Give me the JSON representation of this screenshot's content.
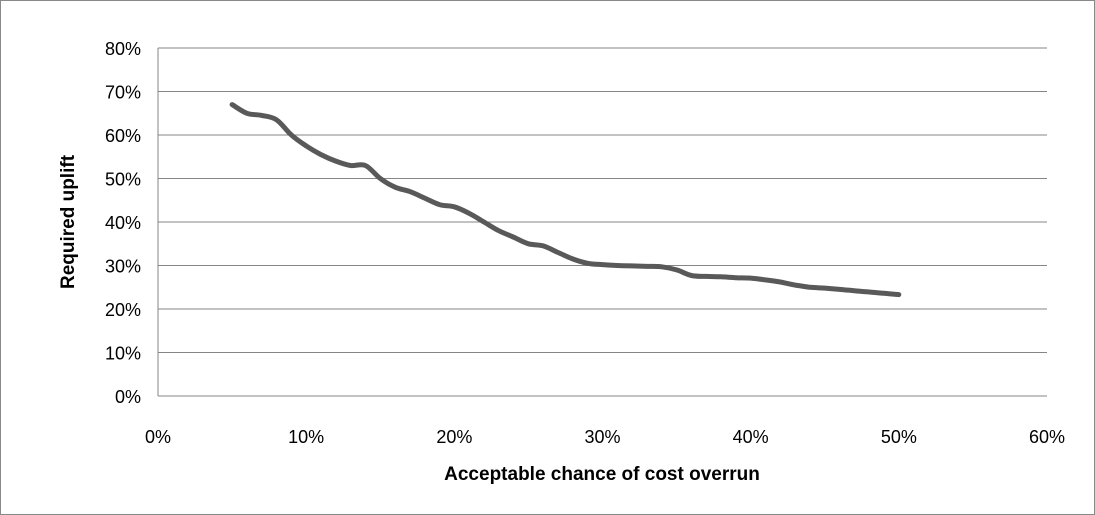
{
  "chart_data": {
    "type": "line",
    "title": "",
    "xlabel": "Acceptable chance of cost overrun",
    "ylabel": "Required uplift",
    "xlim": [
      0,
      0.6
    ],
    "ylim": [
      0,
      0.8
    ],
    "x_ticks": [
      "0%",
      "10%",
      "20%",
      "30%",
      "40%",
      "50%",
      "60%"
    ],
    "y_ticks": [
      "0%",
      "10%",
      "20%",
      "30%",
      "40%",
      "50%",
      "60%",
      "70%",
      "80%"
    ],
    "grid": "horizontal",
    "legend": "none",
    "series": [
      {
        "color": "#595959",
        "x": [
          0.05,
          0.06,
          0.07,
          0.08,
          0.09,
          0.1,
          0.11,
          0.12,
          0.13,
          0.14,
          0.15,
          0.16,
          0.17,
          0.18,
          0.19,
          0.2,
          0.21,
          0.22,
          0.23,
          0.24,
          0.25,
          0.26,
          0.27,
          0.28,
          0.29,
          0.3,
          0.31,
          0.32,
          0.33,
          0.34,
          0.35,
          0.36,
          0.37,
          0.38,
          0.39,
          0.4,
          0.41,
          0.42,
          0.43,
          0.44,
          0.45,
          0.46,
          0.47,
          0.48,
          0.49,
          0.5
        ],
        "y": [
          0.67,
          0.65,
          0.645,
          0.635,
          0.6,
          0.575,
          0.555,
          0.54,
          0.53,
          0.53,
          0.5,
          0.48,
          0.47,
          0.455,
          0.44,
          0.435,
          0.42,
          0.4,
          0.38,
          0.365,
          0.35,
          0.345,
          0.33,
          0.315,
          0.305,
          0.302,
          0.3,
          0.299,
          0.298,
          0.297,
          0.29,
          0.277,
          0.275,
          0.274,
          0.272,
          0.271,
          0.267,
          0.262,
          0.255,
          0.25,
          0.248,
          0.245,
          0.242,
          0.239,
          0.236,
          0.233
        ]
      }
    ]
  }
}
